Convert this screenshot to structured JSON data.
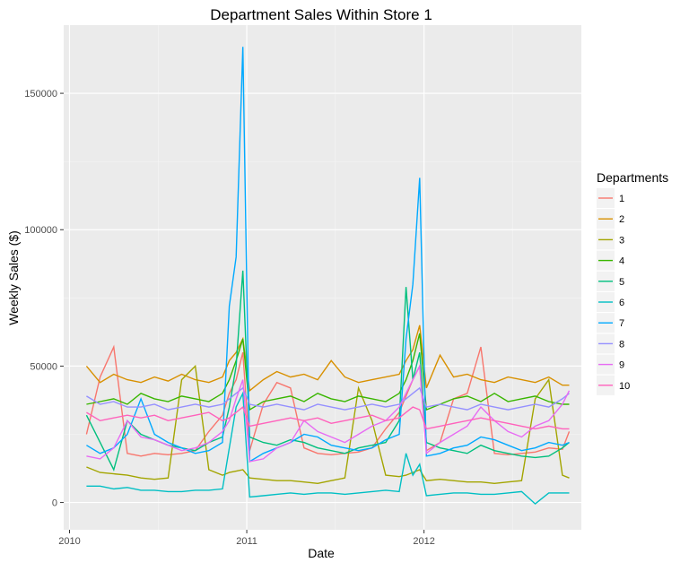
{
  "chart_data": {
    "type": "line",
    "title": "Department Sales Within Store 1",
    "xlabel": "Date",
    "ylabel": "Weekly Sales ($)",
    "legend_title": "Departments",
    "legend_position": "right",
    "grid": true,
    "xlim": [
      "2009-12-20",
      "2012-11-20"
    ],
    "ylim": [
      -10000,
      175000
    ],
    "x_ticks": [
      {
        "date": "2010-01-01",
        "label": "2010"
      },
      {
        "date": "2011-01-01",
        "label": "2011"
      },
      {
        "date": "2012-01-01",
        "label": "2012"
      }
    ],
    "y_ticks": [
      {
        "value": 0,
        "label": "0"
      },
      {
        "value": 50000,
        "label": "50000"
      },
      {
        "value": 100000,
        "label": "100000"
      },
      {
        "value": 150000,
        "label": "150000"
      }
    ],
    "x": [
      "2010-02-05",
      "2010-03-05",
      "2010-04-02",
      "2010-04-30",
      "2010-05-28",
      "2010-06-25",
      "2010-07-23",
      "2010-08-20",
      "2010-09-17",
      "2010-10-15",
      "2010-11-12",
      "2010-11-26",
      "2010-12-10",
      "2010-12-24",
      "2011-01-07",
      "2011-02-04",
      "2011-03-04",
      "2011-04-01",
      "2011-04-29",
      "2011-05-27",
      "2011-06-24",
      "2011-07-22",
      "2011-08-19",
      "2011-09-16",
      "2011-10-14",
      "2011-11-11",
      "2011-11-25",
      "2011-12-09",
      "2011-12-23",
      "2012-01-06",
      "2012-02-03",
      "2012-03-02",
      "2012-03-30",
      "2012-04-27",
      "2012-05-25",
      "2012-06-22",
      "2012-07-20",
      "2012-08-17",
      "2012-09-14",
      "2012-10-12",
      "2012-10-26"
    ],
    "series": [
      {
        "name": "1",
        "color": "#F8766D",
        "values": [
          25000,
          46000,
          57000,
          18000,
          17000,
          18000,
          17500,
          18000,
          19000,
          26000,
          32000,
          40000,
          45000,
          55000,
          19000,
          36000,
          44000,
          42000,
          20000,
          18000,
          17500,
          18000,
          18500,
          20000,
          27000,
          33000,
          39000,
          45000,
          50000,
          19000,
          22000,
          38000,
          40000,
          57000,
          18000,
          17500,
          18000,
          18500,
          20000,
          19500,
          26000
        ]
      },
      {
        "name": "2",
        "color": "#D89000",
        "values": [
          50000,
          44000,
          47000,
          45000,
          44000,
          46000,
          44500,
          47000,
          45000,
          44000,
          46000,
          52000,
          55000,
          60000,
          41000,
          45000,
          48000,
          46000,
          47000,
          45000,
          52000,
          46000,
          44000,
          45000,
          46000,
          47000,
          52000,
          56000,
          65000,
          42000,
          54000,
          46000,
          47000,
          45000,
          44000,
          46000,
          45000,
          44000,
          46000,
          43000,
          43000
        ]
      },
      {
        "name": "3",
        "color": "#A3A500",
        "values": [
          13000,
          11000,
          10500,
          10000,
          9000,
          8500,
          9000,
          45000,
          50000,
          12000,
          10000,
          11000,
          11500,
          12000,
          9000,
          8500,
          8000,
          8000,
          7500,
          7000,
          8000,
          9000,
          42000,
          30000,
          10000,
          9500,
          10000,
          11000,
          12000,
          8000,
          8500,
          8000,
          7500,
          7500,
          7000,
          7500,
          8000,
          38000,
          45000,
          10000,
          9000
        ]
      },
      {
        "name": "4",
        "color": "#39B600",
        "values": [
          36000,
          37000,
          38000,
          36000,
          40000,
          38000,
          37000,
          39000,
          38000,
          37000,
          40000,
          45000,
          52000,
          60000,
          34000,
          37000,
          38000,
          39000,
          37000,
          40000,
          38000,
          37000,
          39000,
          38000,
          37000,
          40000,
          45000,
          52000,
          62000,
          34000,
          36000,
          38000,
          39000,
          37000,
          40000,
          37000,
          38000,
          39000,
          37000,
          36000,
          36000
        ]
      },
      {
        "name": "5",
        "color": "#00BF7D",
        "values": [
          32000,
          22000,
          12000,
          30000,
          25000,
          23000,
          21000,
          20000,
          19000,
          22000,
          24000,
          35000,
          50000,
          85000,
          24000,
          22000,
          21000,
          23000,
          22000,
          20000,
          19000,
          18000,
          20000,
          21000,
          22000,
          30000,
          79000,
          45000,
          55000,
          22000,
          20000,
          19000,
          18000,
          21000,
          19000,
          18000,
          17000,
          16500,
          17000,
          20000,
          22000
        ]
      },
      {
        "name": "6",
        "color": "#00BFC4",
        "values": [
          6000,
          6000,
          5000,
          5500,
          4500,
          4500,
          4000,
          4000,
          4500,
          4500,
          5000,
          20000,
          35000,
          40000,
          2000,
          2500,
          3000,
          3500,
          3000,
          3500,
          3500,
          3000,
          3500,
          4000,
          4500,
          4000,
          18000,
          10000,
          14000,
          2500,
          3000,
          3500,
          3500,
          3000,
          3000,
          3500,
          4000,
          -500,
          3500,
          3500,
          3500
        ]
      },
      {
        "name": "7",
        "color": "#00A9FF",
        "values": [
          21000,
          18000,
          20000,
          25000,
          38000,
          25000,
          22000,
          20000,
          18000,
          19000,
          22000,
          72000,
          90000,
          167000,
          15000,
          18000,
          20000,
          22000,
          25000,
          24000,
          21000,
          20000,
          19000,
          20000,
          23000,
          25000,
          60000,
          80000,
          119000,
          17000,
          18000,
          20000,
          21000,
          24000,
          23000,
          21000,
          19000,
          20000,
          22000,
          21000,
          22000
        ]
      },
      {
        "name": "8",
        "color": "#9590FF",
        "values": [
          39000,
          36000,
          37000,
          35000,
          35000,
          36000,
          34000,
          35000,
          36000,
          35000,
          36000,
          38000,
          40000,
          42000,
          36000,
          35000,
          36000,
          35000,
          34000,
          36000,
          35000,
          34000,
          35000,
          36000,
          35000,
          36000,
          38000,
          40000,
          42000,
          35000,
          36000,
          35000,
          34000,
          36000,
          35000,
          34000,
          35000,
          36000,
          35000,
          38000,
          40000
        ]
      },
      {
        "name": "9",
        "color": "#E76BF3",
        "values": [
          17000,
          16000,
          20000,
          30000,
          24000,
          23000,
          21000,
          19000,
          20000,
          22000,
          26000,
          30000,
          38000,
          45000,
          15000,
          16000,
          20000,
          22000,
          30000,
          26000,
          24000,
          22000,
          25000,
          28000,
          30000,
          35000,
          40000,
          45000,
          50000,
          18000,
          22000,
          25000,
          28000,
          35000,
          30000,
          26000,
          24000,
          28000,
          30000,
          36000,
          41000
        ]
      },
      {
        "name": "10",
        "color": "#FF62BC",
        "values": [
          33000,
          30000,
          31000,
          32000,
          31000,
          32000,
          30000,
          31000,
          32000,
          33000,
          30000,
          31000,
          33000,
          35000,
          28000,
          29000,
          30000,
          31000,
          30000,
          31000,
          29000,
          30000,
          31000,
          32000,
          30000,
          31000,
          33000,
          35000,
          34000,
          27000,
          28000,
          29000,
          30000,
          31000,
          30000,
          29000,
          28000,
          27000,
          28000,
          27000,
          27000
        ]
      }
    ]
  }
}
